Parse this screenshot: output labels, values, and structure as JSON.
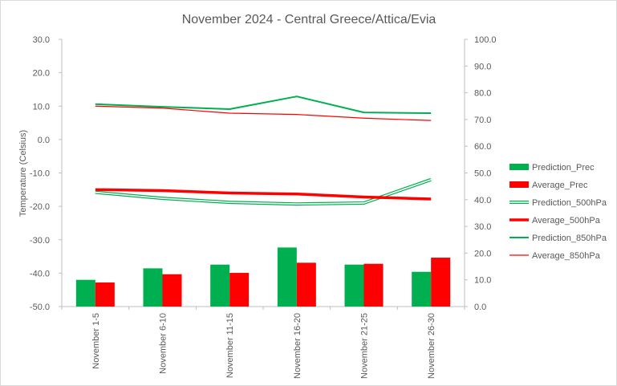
{
  "chart_data": {
    "type": "bar",
    "title": "November 2024 - Central Greece/Attica/Evia",
    "ylabel": "Temperature (Celsius)",
    "ylim": [
      -50,
      30
    ],
    "y_ticks": [
      "30.0",
      "20.0",
      "10.0",
      "0.0",
      "-10.0",
      "-20.0",
      "-30.0",
      "-40.0",
      "-50.0"
    ],
    "y2lim": [
      0,
      100
    ],
    "y2_ticks": [
      "100.0",
      "90.0",
      "80.0",
      "70.0",
      "60.0",
      "50.0",
      "40.0",
      "30.0",
      "20.0",
      "10.0",
      "0.0"
    ],
    "categories": [
      "November 1-5",
      "November 6-10",
      "November 11-15",
      "November 16-20",
      "November 21-25",
      "November 26-30"
    ],
    "grid": false,
    "legend_position": "right",
    "series": [
      {
        "name": "Prediction_Prec",
        "kind": "bar",
        "axis": "secondary",
        "color": "#00b050",
        "values": [
          10.0,
          14.3,
          15.7,
          22.1,
          15.7,
          13.0
        ]
      },
      {
        "name": "Average_Prec",
        "kind": "bar",
        "axis": "secondary",
        "color": "#ff0000",
        "values": [
          9.0,
          12.1,
          12.6,
          16.4,
          16.0,
          18.3
        ]
      },
      {
        "name": "Prediction_500hPa",
        "kind": "line",
        "style": "double",
        "axis": "primary",
        "color": "#00b050",
        "values": [
          -15.8,
          -17.6,
          -18.8,
          -19.3,
          -19.0,
          -12.0
        ]
      },
      {
        "name": "Average_500hPa",
        "kind": "line",
        "style": "thick",
        "axis": "primary",
        "color": "#ff0000",
        "values": [
          -15.0,
          -15.3,
          -16.0,
          -16.3,
          -17.2,
          -17.8
        ]
      },
      {
        "name": "Prediction_850hPa",
        "kind": "line",
        "style": "normal",
        "axis": "primary",
        "color": "#00b050",
        "values": [
          10.6,
          9.8,
          9.1,
          12.9,
          8.1,
          7.9
        ]
      },
      {
        "name": "Average_850hPa",
        "kind": "line",
        "style": "thin",
        "axis": "primary",
        "color": "#ff0000",
        "values": [
          10.0,
          9.4,
          7.9,
          7.5,
          6.4,
          5.7
        ]
      }
    ]
  }
}
